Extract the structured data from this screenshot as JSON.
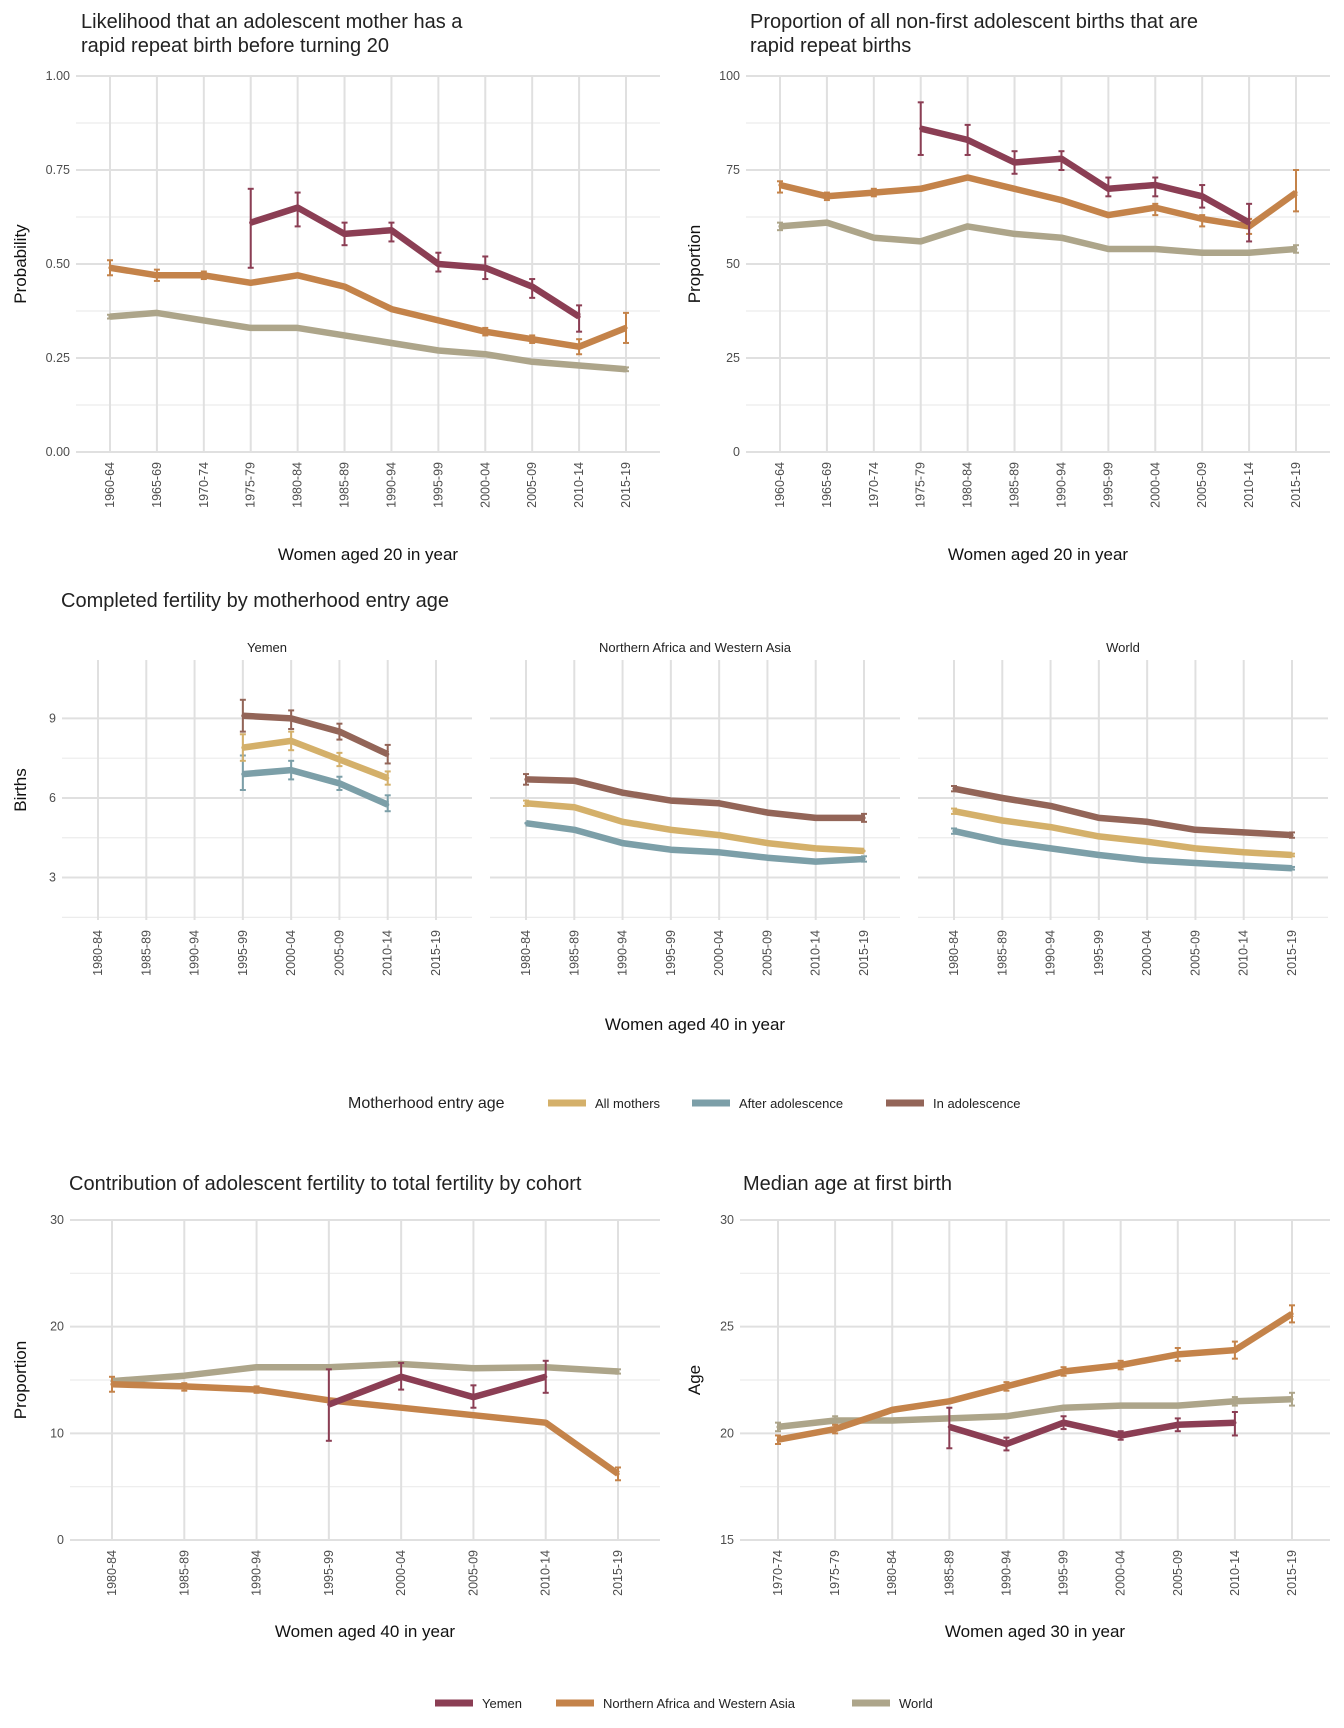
{
  "colors": {
    "yemen": "#8B3E54",
    "nawa": "#C4834A",
    "world": "#ADA58A",
    "all_mothers": "#D4B06A",
    "after_adolescence": "#7C9FA8",
    "in_adolescence": "#936558"
  },
  "chart_data": [
    {
      "id": "rapid-repeat-probability",
      "type": "line",
      "title": "Likelihood that an adolescent mother has a rapid repeat birth before turning 20",
      "title_lines": [
        "Likelihood that an adolescent mother has a",
        "rapid repeat birth before turning 20"
      ],
      "xlabel": "Women aged 20 in year",
      "ylabel": "Probability",
      "categories": [
        "1960-64",
        "1965-69",
        "1970-74",
        "1975-79",
        "1980-84",
        "1985-89",
        "1990-94",
        "1995-99",
        "2000-04",
        "2005-09",
        "2010-14",
        "2015-19"
      ],
      "ylim": [
        0,
        1
      ],
      "yticks": [
        0,
        0.25,
        0.5,
        0.75,
        1
      ],
      "ytick_labels": [
        "0.00",
        "0.25",
        "0.50",
        "0.75",
        "1.00"
      ],
      "grid": true,
      "series": [
        {
          "key": "world",
          "values": [
            0.36,
            0.37,
            0.35,
            0.33,
            0.33,
            0.31,
            0.29,
            0.27,
            0.26,
            0.24,
            0.23,
            0.22
          ],
          "lower": [
            0.355,
            null,
            null,
            null,
            null,
            null,
            null,
            null,
            null,
            null,
            null,
            0.215
          ],
          "upper": [
            0.365,
            null,
            null,
            null,
            null,
            null,
            null,
            null,
            null,
            null,
            null,
            0.225
          ]
        },
        {
          "key": "nawa",
          "values": [
            0.49,
            0.47,
            0.47,
            0.45,
            0.47,
            0.44,
            0.38,
            0.35,
            0.32,
            0.3,
            0.28,
            0.33
          ],
          "lower": [
            0.47,
            0.455,
            0.46,
            null,
            null,
            null,
            null,
            null,
            0.31,
            0.29,
            0.26,
            0.29
          ],
          "upper": [
            0.51,
            0.485,
            0.48,
            null,
            null,
            null,
            null,
            null,
            0.33,
            0.31,
            0.3,
            0.37
          ]
        },
        {
          "key": "yemen",
          "values": [
            null,
            null,
            null,
            0.61,
            0.65,
            0.58,
            0.59,
            0.5,
            0.49,
            0.44,
            0.36,
            null
          ],
          "lower": [
            null,
            null,
            null,
            0.49,
            0.6,
            0.55,
            0.56,
            0.48,
            0.46,
            0.41,
            0.32,
            null
          ],
          "upper": [
            null,
            null,
            null,
            0.7,
            0.69,
            0.61,
            0.61,
            0.53,
            0.52,
            0.46,
            0.39,
            null
          ]
        }
      ]
    },
    {
      "id": "rapid-repeat-proportion",
      "type": "line",
      "title": "Proportion of all non-first adolescent births that are rapid repeat births",
      "title_lines": [
        "Proportion of all non-first adolescent births that are",
        "rapid repeat births"
      ],
      "xlabel": "Women aged 20 in year",
      "ylabel": "Proportion",
      "categories": [
        "1960-64",
        "1965-69",
        "1970-74",
        "1975-79",
        "1980-84",
        "1985-89",
        "1990-94",
        "1995-99",
        "2000-04",
        "2005-09",
        "2010-14",
        "2015-19"
      ],
      "ylim": [
        0,
        100
      ],
      "yticks": [
        0,
        25,
        50,
        75,
        100
      ],
      "ytick_labels": [
        "0",
        "25",
        "50",
        "75",
        "100"
      ],
      "grid": true,
      "series": [
        {
          "key": "world",
          "values": [
            60,
            61,
            57,
            56,
            60,
            58,
            57,
            54,
            54,
            53,
            53,
            54
          ],
          "lower": [
            59,
            null,
            null,
            null,
            null,
            null,
            null,
            null,
            null,
            null,
            null,
            53
          ],
          "upper": [
            61,
            null,
            null,
            null,
            null,
            null,
            null,
            null,
            null,
            null,
            null,
            55
          ]
        },
        {
          "key": "nawa",
          "values": [
            71,
            68,
            69,
            70,
            73,
            70,
            67,
            63,
            65,
            62,
            60,
            69
          ],
          "lower": [
            69,
            67,
            68,
            null,
            null,
            null,
            null,
            null,
            63,
            60,
            58,
            64
          ],
          "upper": [
            72,
            69,
            70,
            null,
            null,
            null,
            null,
            null,
            66,
            63,
            62,
            75
          ]
        },
        {
          "key": "yemen",
          "values": [
            null,
            null,
            null,
            86,
            83,
            77,
            78,
            70,
            71,
            68,
            61,
            null
          ],
          "lower": [
            null,
            null,
            null,
            79,
            79,
            74,
            75,
            68,
            68,
            65,
            56,
            null
          ],
          "upper": [
            null,
            null,
            null,
            93,
            87,
            80,
            80,
            73,
            73,
            71,
            66,
            null
          ]
        }
      ]
    },
    {
      "id": "completed-fertility",
      "type": "line",
      "title": "Completed fertility by motherhood entry age",
      "xlabel": "Women aged 40 in year",
      "ylabel": "Births",
      "categories": [
        "1980-84",
        "1985-89",
        "1990-94",
        "1995-99",
        "2000-04",
        "2005-09",
        "2010-14",
        "2015-19"
      ],
      "ylim": [
        1.4,
        11.2
      ],
      "yticks": [
        3,
        6,
        9
      ],
      "ytick_labels": [
        "3",
        "6",
        "9"
      ],
      "grid": true,
      "legend": {
        "title": "Motherhood entry age",
        "placement": "bottom",
        "items": [
          {
            "key": "all_mothers",
            "label": "All mothers"
          },
          {
            "key": "after_adolescence",
            "label": "After adolescence"
          },
          {
            "key": "in_adolescence",
            "label": "In adolescence"
          }
        ]
      },
      "facets": [
        {
          "label": "Yemen",
          "series": [
            {
              "key": "after_adolescence",
              "values": [
                null,
                null,
                null,
                6.9,
                7.05,
                6.55,
                5.75,
                null
              ],
              "lower": [
                null,
                null,
                null,
                6.3,
                6.7,
                6.3,
                5.5,
                null
              ],
              "upper": [
                null,
                null,
                null,
                7.6,
                7.4,
                6.8,
                6.1,
                null
              ]
            },
            {
              "key": "all_mothers",
              "values": [
                null,
                null,
                null,
                7.9,
                8.15,
                7.45,
                6.75,
                null
              ],
              "lower": [
                null,
                null,
                null,
                7.4,
                7.8,
                7.2,
                6.5,
                null
              ],
              "upper": [
                null,
                null,
                null,
                8.4,
                8.5,
                7.7,
                7.0,
                null
              ]
            },
            {
              "key": "in_adolescence",
              "values": [
                null,
                null,
                null,
                9.1,
                9.0,
                8.5,
                7.65,
                null
              ],
              "lower": [
                null,
                null,
                null,
                8.5,
                8.6,
                8.2,
                7.3,
                null
              ],
              "upper": [
                null,
                null,
                null,
                9.7,
                9.3,
                8.8,
                8.0,
                null
              ]
            }
          ]
        },
        {
          "label": "Northern Africa and Western Asia",
          "series": [
            {
              "key": "after_adolescence",
              "values": [
                5.05,
                4.8,
                4.3,
                4.05,
                3.95,
                3.75,
                3.6,
                3.7
              ],
              "lower": [
                null,
                null,
                null,
                null,
                null,
                null,
                null,
                3.6
              ],
              "upper": [
                null,
                null,
                null,
                null,
                null,
                null,
                null,
                3.8
              ]
            },
            {
              "key": "all_mothers",
              "values": [
                5.8,
                5.65,
                5.1,
                4.8,
                4.6,
                4.3,
                4.1,
                4.0
              ],
              "lower": [
                5.7,
                null,
                null,
                null,
                null,
                null,
                null,
                null
              ],
              "upper": [
                5.9,
                null,
                null,
                null,
                null,
                null,
                null,
                null
              ]
            },
            {
              "key": "in_adolescence",
              "values": [
                6.7,
                6.65,
                6.2,
                5.9,
                5.8,
                5.45,
                5.25,
                5.25
              ],
              "lower": [
                6.5,
                null,
                null,
                null,
                null,
                null,
                null,
                5.1
              ],
              "upper": [
                6.9,
                null,
                null,
                null,
                null,
                null,
                null,
                5.4
              ]
            }
          ]
        },
        {
          "label": "World",
          "series": [
            {
              "key": "after_adolescence",
              "values": [
                4.75,
                4.35,
                4.1,
                3.85,
                3.65,
                3.55,
                3.45,
                3.35
              ],
              "lower": [
                4.65,
                null,
                null,
                null,
                null,
                null,
                null,
                3.3
              ],
              "upper": [
                4.85,
                null,
                null,
                null,
                null,
                null,
                null,
                3.4
              ]
            },
            {
              "key": "all_mothers",
              "values": [
                5.5,
                5.15,
                4.9,
                4.55,
                4.35,
                4.1,
                3.95,
                3.85
              ],
              "lower": [
                5.4,
                null,
                null,
                null,
                null,
                null,
                null,
                3.8
              ],
              "upper": [
                5.6,
                null,
                null,
                null,
                null,
                null,
                null,
                3.9
              ]
            },
            {
              "key": "in_adolescence",
              "values": [
                6.35,
                6.0,
                5.7,
                5.25,
                5.1,
                4.8,
                4.7,
                4.6
              ],
              "lower": [
                6.25,
                null,
                null,
                null,
                null,
                null,
                null,
                4.5
              ],
              "upper": [
                6.45,
                null,
                null,
                null,
                null,
                null,
                null,
                4.7
              ]
            }
          ]
        }
      ]
    },
    {
      "id": "adolescent-contribution",
      "type": "line",
      "title": "Contribution of adolescent fertility to total fertility by cohort",
      "xlabel": "Women aged 40 in year",
      "ylabel": "Proportion",
      "categories": [
        "1980-84",
        "1985-89",
        "1990-94",
        "1995-99",
        "2000-04",
        "2005-09",
        "2010-14",
        "2015-19"
      ],
      "ylim": [
        0,
        30
      ],
      "yticks": [
        0,
        10,
        20,
        30
      ],
      "ytick_labels": [
        "0",
        "10",
        "20",
        "30"
      ],
      "grid": true,
      "series": [
        {
          "key": "world",
          "values": [
            14.9,
            15.4,
            16.2,
            16.2,
            16.5,
            16.1,
            16.2,
            15.8
          ],
          "lower": [
            null,
            null,
            null,
            null,
            null,
            null,
            null,
            15.6
          ],
          "upper": [
            null,
            null,
            null,
            null,
            null,
            null,
            null,
            16.0
          ]
        },
        {
          "key": "nawa",
          "values": [
            14.6,
            14.4,
            14.1,
            13.1,
            12.4,
            11.7,
            11.0,
            6.2
          ],
          "lower": [
            13.9,
            14.0,
            13.8,
            null,
            null,
            null,
            null,
            5.6
          ],
          "upper": [
            15.3,
            14.7,
            14.4,
            null,
            null,
            null,
            null,
            6.8
          ]
        },
        {
          "key": "yemen",
          "values": [
            null,
            null,
            null,
            12.7,
            15.3,
            13.4,
            15.3,
            null
          ],
          "lower": [
            null,
            null,
            null,
            9.3,
            14.1,
            12.4,
            13.8,
            null
          ],
          "upper": [
            null,
            null,
            null,
            16.0,
            16.6,
            14.5,
            16.8,
            null
          ]
        }
      ]
    },
    {
      "id": "median-age-first-birth",
      "type": "line",
      "title": "Median age at first birth",
      "xlabel": "Women aged 30 in year",
      "ylabel": "Age",
      "categories": [
        "1970-74",
        "1975-79",
        "1980-84",
        "1985-89",
        "1990-94",
        "1995-99",
        "2000-04",
        "2005-09",
        "2010-14",
        "2015-19"
      ],
      "ylim": [
        15,
        30
      ],
      "yticks": [
        15,
        20,
        25,
        30
      ],
      "ytick_labels": [
        "15",
        "20",
        "25",
        "30"
      ],
      "grid": true,
      "legend": {
        "placement": "bottom",
        "items": [
          {
            "key": "yemen",
            "label": "Yemen"
          },
          {
            "key": "nawa",
            "label": "Northern Africa and Western Asia"
          },
          {
            "key": "world",
            "label": "World"
          }
        ]
      },
      "series": [
        {
          "key": "world",
          "values": [
            20.3,
            20.6,
            20.6,
            20.7,
            20.8,
            21.2,
            21.3,
            21.3,
            21.5,
            21.6
          ],
          "lower": [
            20.1,
            20.4,
            null,
            null,
            null,
            null,
            null,
            null,
            21.3,
            21.3
          ],
          "upper": [
            20.5,
            20.8,
            null,
            null,
            null,
            null,
            null,
            null,
            21.7,
            21.9
          ]
        },
        {
          "key": "nawa",
          "values": [
            19.7,
            20.2,
            21.1,
            21.5,
            22.2,
            22.9,
            23.2,
            23.7,
            23.9,
            25.6
          ],
          "lower": [
            19.5,
            20.0,
            null,
            null,
            22.0,
            22.7,
            23.0,
            23.4,
            23.5,
            25.2
          ],
          "upper": [
            19.9,
            20.4,
            null,
            null,
            22.4,
            23.1,
            23.4,
            24.0,
            24.3,
            26.0
          ]
        },
        {
          "key": "yemen",
          "values": [
            null,
            null,
            null,
            20.3,
            19.5,
            20.5,
            19.9,
            20.4,
            20.5,
            null
          ],
          "lower": [
            null,
            null,
            null,
            19.3,
            19.2,
            20.2,
            19.7,
            20.1,
            19.9,
            null
          ],
          "upper": [
            null,
            null,
            null,
            21.2,
            19.8,
            20.8,
            20.1,
            20.7,
            21.0,
            null
          ]
        }
      ]
    }
  ]
}
